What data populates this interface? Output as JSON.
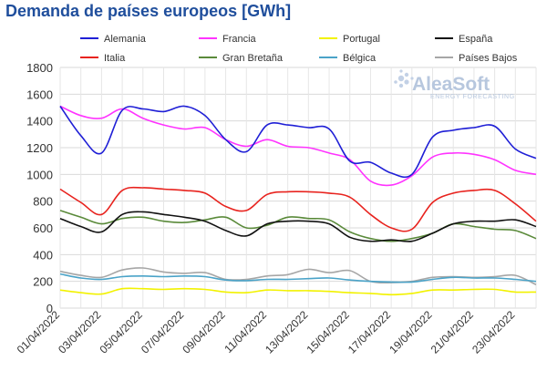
{
  "chart_data": {
    "type": "line",
    "title": "Demanda de países europeos [GWh]",
    "xlabel": "",
    "ylabel": "",
    "ylim": [
      0,
      1800
    ],
    "yticks": [
      0,
      200,
      400,
      600,
      800,
      1000,
      1200,
      1400,
      1600,
      1800
    ],
    "x": [
      "01/04/2022",
      "02/04/2022",
      "03/04/2022",
      "04/04/2022",
      "05/04/2022",
      "06/04/2022",
      "07/04/2022",
      "08/04/2022",
      "09/04/2022",
      "10/04/2022",
      "11/04/2022",
      "12/04/2022",
      "13/04/2022",
      "14/04/2022",
      "15/04/2022",
      "16/04/2022",
      "17/04/2022",
      "18/04/2022",
      "19/04/2022",
      "20/04/2022",
      "21/04/2022",
      "22/04/2022",
      "23/04/2022",
      "24/04/2022"
    ],
    "xtick_labels": [
      "01/04/2022",
      "03/04/2022",
      "05/04/2022",
      "07/04/2022",
      "09/04/2022",
      "11/04/2022",
      "13/04/2022",
      "15/04/2022",
      "17/04/2022",
      "19/04/2022",
      "21/04/2022",
      "23/04/2022"
    ],
    "grid": true,
    "legend_position": "top",
    "series": [
      {
        "name": "Alemania",
        "color": "#1f1fd6",
        "values": [
          1510,
          1290,
          1160,
          1480,
          1490,
          1470,
          1510,
          1440,
          1260,
          1170,
          1370,
          1370,
          1350,
          1340,
          1100,
          1090,
          1010,
          1000,
          1280,
          1330,
          1350,
          1360,
          1190,
          1120
        ]
      },
      {
        "name": "Francia",
        "color": "#ff33ff",
        "values": [
          1510,
          1440,
          1420,
          1490,
          1420,
          1370,
          1340,
          1350,
          1260,
          1210,
          1260,
          1210,
          1200,
          1160,
          1110,
          950,
          920,
          990,
          1130,
          1160,
          1150,
          1110,
          1030,
          1000
        ]
      },
      {
        "name": "Portugal",
        "color": "#f2f200",
        "values": [
          135,
          115,
          105,
          145,
          145,
          140,
          145,
          140,
          120,
          115,
          135,
          130,
          130,
          125,
          115,
          110,
          100,
          110,
          135,
          135,
          140,
          140,
          120,
          120
        ]
      },
      {
        "name": "España",
        "color": "#111111",
        "values": [
          670,
          610,
          570,
          700,
          720,
          700,
          680,
          650,
          580,
          540,
          630,
          650,
          650,
          630,
          530,
          500,
          510,
          500,
          560,
          630,
          650,
          650,
          660,
          610
        ]
      },
      {
        "name": "Italia",
        "color": "#e8231e",
        "values": [
          890,
          790,
          700,
          880,
          900,
          890,
          880,
          860,
          760,
          730,
          850,
          870,
          870,
          860,
          830,
          700,
          600,
          590,
          790,
          860,
          880,
          880,
          780,
          650
        ]
      },
      {
        "name": "Gran Bretaña",
        "color": "#5a8a3a",
        "values": [
          730,
          680,
          630,
          670,
          680,
          650,
          640,
          660,
          680,
          600,
          620,
          680,
          670,
          660,
          570,
          520,
          500,
          520,
          560,
          630,
          610,
          590,
          580,
          520
        ]
      },
      {
        "name": "Bélgica",
        "color": "#4aa3c8",
        "values": [
          255,
          225,
          215,
          235,
          240,
          235,
          240,
          235,
          210,
          205,
          215,
          215,
          220,
          225,
          210,
          200,
          195,
          195,
          215,
          230,
          225,
          225,
          215,
          200
        ]
      },
      {
        "name": "Países Bajos",
        "color": "#a6a6a6",
        "values": [
          275,
          245,
          230,
          285,
          300,
          270,
          260,
          265,
          215,
          215,
          240,
          250,
          290,
          265,
          280,
          200,
          190,
          200,
          230,
          235,
          230,
          235,
          245,
          175
        ]
      }
    ]
  },
  "watermark": {
    "brand": "AleaSoft",
    "subtitle": "ENERGY FORECASTING"
  }
}
